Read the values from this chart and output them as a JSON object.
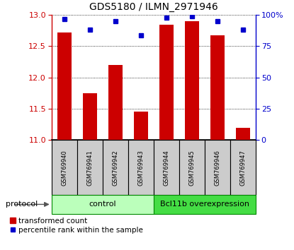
{
  "title": "GDS5180 / ILMN_2971946",
  "samples": [
    "GSM769940",
    "GSM769941",
    "GSM769942",
    "GSM769943",
    "GSM769944",
    "GSM769945",
    "GSM769946",
    "GSM769947"
  ],
  "transformed_count": [
    12.72,
    11.75,
    12.2,
    11.45,
    12.85,
    12.9,
    12.68,
    11.2
  ],
  "percentile_rank": [
    97,
    88,
    95,
    84,
    98,
    99,
    95,
    88
  ],
  "ylim_left": [
    11,
    13
  ],
  "ylim_right": [
    0,
    100
  ],
  "yticks_left": [
    11,
    11.5,
    12,
    12.5,
    13
  ],
  "yticks_right": [
    0,
    25,
    50,
    75,
    100
  ],
  "ytick_labels_right": [
    "0",
    "25",
    "50",
    "75",
    "100%"
  ],
  "bar_color": "#cc0000",
  "dot_color": "#0000cc",
  "group_control_label": "control",
  "group_overexp_label": "Bcl11b overexpression",
  "group_control_color": "#bbffbb",
  "group_overexp_color": "#44dd44",
  "sample_box_color": "#cccccc",
  "protocol_label": "protocol",
  "legend_bar_label": "transformed count",
  "legend_dot_label": "percentile rank within the sample",
  "title_fontsize": 10,
  "tick_fontsize": 8,
  "label_fontsize": 8,
  "background_color": "#ffffff"
}
